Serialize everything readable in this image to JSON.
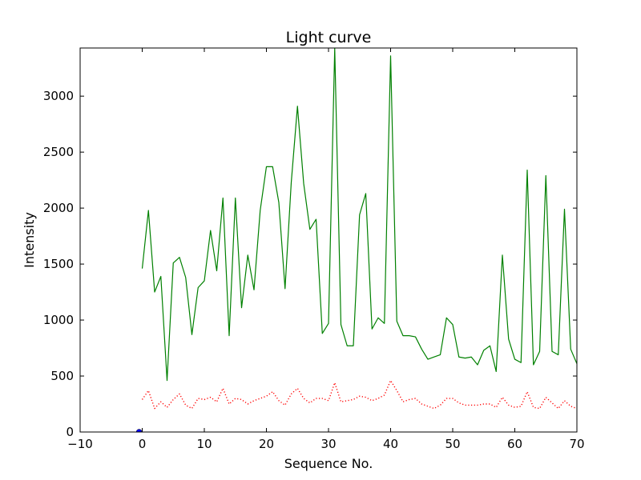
{
  "chart_data": {
    "type": "line",
    "title": "Light curve",
    "xlabel": "Sequence No.",
    "ylabel": "Intensity",
    "xlim": [
      -10,
      70
    ],
    "ylim": [
      0,
      3430
    ],
    "xticks": [
      "−10",
      "0",
      "10",
      "20",
      "30",
      "40",
      "50",
      "60",
      "70"
    ],
    "xtick_values": [
      -10,
      0,
      10,
      20,
      30,
      40,
      50,
      60,
      70
    ],
    "yticks": [
      "0",
      "500",
      "1000",
      "1500",
      "2000",
      "2500",
      "3000"
    ],
    "ytick_values": [
      0,
      500,
      1000,
      1500,
      2000,
      2500,
      3000
    ],
    "grid": false,
    "legend": "none",
    "series": [
      {
        "style": "solid",
        "color": "#008000",
        "x": [
          0,
          1,
          2,
          3,
          4,
          5,
          6,
          7,
          8,
          9,
          10,
          11,
          12,
          13,
          14,
          15,
          16,
          17,
          18,
          19,
          20,
          21,
          22,
          23,
          24,
          25,
          26,
          27,
          28,
          29,
          30,
          31,
          32,
          33,
          34,
          35,
          36,
          37,
          38,
          39,
          40,
          41,
          42,
          43,
          44,
          45,
          46,
          47,
          48,
          49,
          50,
          51,
          52,
          53,
          54,
          55,
          56,
          57,
          58,
          59,
          60,
          61,
          62,
          63,
          64,
          65,
          66,
          67,
          68,
          69,
          70
        ],
        "y": [
          1460,
          1980,
          1250,
          1390,
          460,
          1510,
          1560,
          1380,
          870,
          1290,
          1350,
          1800,
          1440,
          2090,
          860,
          2090,
          1110,
          1580,
          1270,
          1980,
          2370,
          2370,
          2050,
          1280,
          2230,
          2910,
          2220,
          1810,
          1900,
          880,
          970,
          3430,
          960,
          770,
          770,
          1940,
          2130,
          920,
          1020,
          970,
          3360,
          990,
          860,
          860,
          850,
          740,
          650,
          670,
          690,
          1020,
          960,
          670,
          660,
          670,
          600,
          730,
          770,
          540,
          1580,
          830,
          650,
          620,
          2340,
          600,
          720,
          2290,
          720,
          690,
          1990,
          740,
          610
        ]
      },
      {
        "style": "dotted",
        "color": "#ff0000",
        "x": [
          0,
          1,
          2,
          3,
          4,
          5,
          6,
          7,
          8,
          9,
          10,
          11,
          12,
          13,
          14,
          15,
          16,
          17,
          18,
          19,
          20,
          21,
          22,
          23,
          24,
          25,
          26,
          27,
          28,
          29,
          30,
          31,
          32,
          33,
          34,
          35,
          36,
          37,
          38,
          39,
          40,
          41,
          42,
          43,
          44,
          45,
          46,
          47,
          48,
          49,
          50,
          51,
          52,
          53,
          54,
          55,
          56,
          57,
          58,
          59,
          60,
          61,
          62,
          63,
          64,
          65,
          66,
          67,
          68,
          69,
          70
        ],
        "y": [
          290,
          370,
          210,
          270,
          220,
          290,
          340,
          240,
          210,
          300,
          290,
          310,
          270,
          390,
          250,
          300,
          290,
          250,
          280,
          300,
          320,
          360,
          280,
          240,
          340,
          390,
          300,
          260,
          300,
          300,
          280,
          440,
          270,
          280,
          290,
          320,
          310,
          280,
          300,
          330,
          460,
          370,
          270,
          290,
          300,
          250,
          230,
          210,
          240,
          300,
          300,
          260,
          240,
          240,
          240,
          250,
          250,
          220,
          310,
          240,
          220,
          230,
          360,
          220,
          210,
          310,
          260,
          210,
          280,
          230,
          210
        ]
      },
      {
        "style": "marker",
        "color": "#0000ff",
        "x": [
          -0.5
        ],
        "y": [
          0
        ]
      }
    ]
  }
}
